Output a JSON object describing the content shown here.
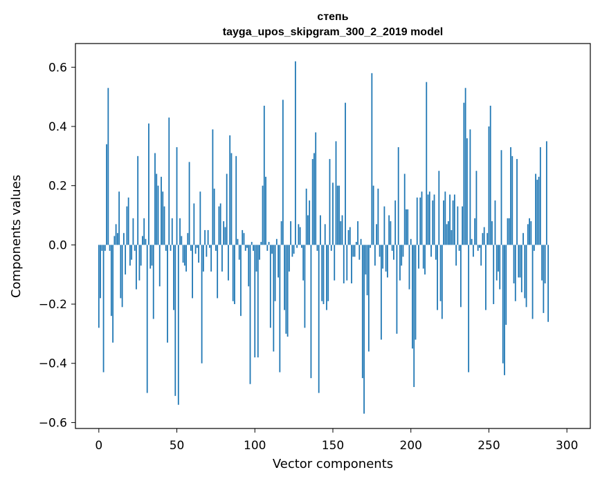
{
  "chart_data": {
    "type": "bar",
    "title": "степь",
    "subtitle": "tayga_upos_skipgram_300_2_2019 model",
    "xlabel": "Vector components",
    "ylabel": "Components values",
    "xlim": [
      -15,
      315
    ],
    "ylim": [
      -0.62,
      0.68
    ],
    "xticks": [
      0,
      50,
      100,
      150,
      200,
      250,
      300
    ],
    "yticks": [
      -0.6,
      -0.4,
      -0.2,
      0.0,
      0.2,
      0.4,
      0.6
    ],
    "ytick_labels": [
      "−0.6",
      "−0.4",
      "−0.2",
      "0.0",
      "0.2",
      "0.4",
      "0.6"
    ],
    "bar_color": "#1f77b4",
    "grid": false,
    "series": [
      {
        "name": "степь",
        "values": [
          -0.28,
          -0.18,
          -0.02,
          -0.43,
          -0.02,
          0.34,
          0.53,
          -0.02,
          -0.24,
          -0.33,
          0.03,
          0.07,
          0.04,
          0.18,
          -0.18,
          -0.21,
          0.04,
          -0.1,
          0.13,
          0.16,
          -0.07,
          -0.05,
          0.09,
          -0.02,
          -0.15,
          0.3,
          -0.12,
          -0.07,
          0.03,
          0.09,
          0.02,
          -0.5,
          0.41,
          -0.08,
          -0.07,
          -0.25,
          0.31,
          0.24,
          0.2,
          -0.14,
          0.23,
          0.18,
          0.13,
          -0.02,
          -0.33,
          0.43,
          -0.02,
          0.09,
          -0.22,
          -0.51,
          0.33,
          -0.54,
          0.09,
          0.03,
          -0.06,
          -0.07,
          -0.09,
          0.04,
          0.28,
          -0.02,
          -0.18,
          0.14,
          -0.03,
          -0.01,
          -0.06,
          0.18,
          -0.4,
          -0.09,
          0.05,
          -0.04,
          0.05,
          -0.01,
          -0.09,
          0.39,
          0.19,
          -0.02,
          -0.18,
          0.13,
          0.14,
          -0.09,
          0.08,
          0.06,
          0.24,
          -0.12,
          0.37,
          0.31,
          -0.19,
          -0.2,
          0.3,
          0.02,
          -0.05,
          -0.24,
          0.05,
          0.04,
          -0.02,
          -0.01,
          -0.14,
          -0.47,
          0.01,
          -0.02,
          -0.38,
          -0.09,
          -0.38,
          -0.05,
          0.01,
          0.2,
          0.47,
          0.23,
          -0.02,
          0.01,
          -0.28,
          -0.03,
          -0.36,
          -0.19,
          0.02,
          -0.11,
          -0.43,
          0.08,
          0.49,
          -0.22,
          -0.3,
          -0.31,
          -0.09,
          0.08,
          -0.04,
          -0.03,
          0.62,
          -0.01,
          0.07,
          0.06,
          -0.01,
          -0.12,
          -0.28,
          0.19,
          0.1,
          0.15,
          -0.45,
          0.29,
          0.31,
          0.38,
          -0.02,
          -0.5,
          0.1,
          -0.19,
          -0.2,
          0.07,
          -0.22,
          -0.19,
          0.29,
          -0.02,
          0.21,
          -0.12,
          0.35,
          0.2,
          0.2,
          0.08,
          0.1,
          -0.13,
          0.48,
          -0.12,
          0.05,
          0.06,
          -0.13,
          -0.04,
          -0.04,
          0.01,
          0.08,
          -0.05,
          0.02,
          -0.45,
          -0.57,
          -0.1,
          -0.17,
          -0.36,
          -0.01,
          0.58,
          0.2,
          -0.07,
          0.07,
          0.19,
          -0.04,
          -0.32,
          -0.08,
          0.13,
          -0.09,
          -0.11,
          0.1,
          0.08,
          -0.02,
          -0.05,
          0.15,
          -0.3,
          0.33,
          -0.12,
          -0.07,
          -0.04,
          0.24,
          0.12,
          0.12,
          -0.15,
          0.02,
          -0.35,
          -0.48,
          -0.32,
          0.16,
          -0.08,
          0.16,
          0.18,
          -0.08,
          -0.1,
          0.55,
          0.17,
          0.18,
          -0.04,
          0.15,
          0.17,
          -0.05,
          -0.22,
          0.25,
          -0.19,
          -0.25,
          0.15,
          0.18,
          0.07,
          0.08,
          0.17,
          0.05,
          0.15,
          0.17,
          -0.07,
          0.13,
          -0.02,
          -0.21,
          0.13,
          0.48,
          0.53,
          0.36,
          -0.43,
          0.39,
          0.02,
          -0.04,
          0.09,
          0.25,
          -0.02,
          -0.01,
          -0.07,
          0.04,
          0.06,
          -0.22,
          0.04,
          0.4,
          0.47,
          0.08,
          -0.2,
          0.15,
          -0.12,
          -0.09,
          -0.15,
          0.32,
          -0.4,
          -0.44,
          -0.27,
          0.09,
          0.09,
          0.33,
          0.3,
          -0.13,
          -0.19,
          0.29,
          -0.11,
          -0.11,
          -0.16,
          0.04,
          -0.18,
          -0.21,
          0.07,
          0.09,
          0.08,
          -0.25,
          -0.02,
          0.24,
          0.22,
          0.23,
          0.33,
          -0.12,
          -0.23,
          -0.13,
          0.35,
          -0.26
        ]
      }
    ]
  }
}
